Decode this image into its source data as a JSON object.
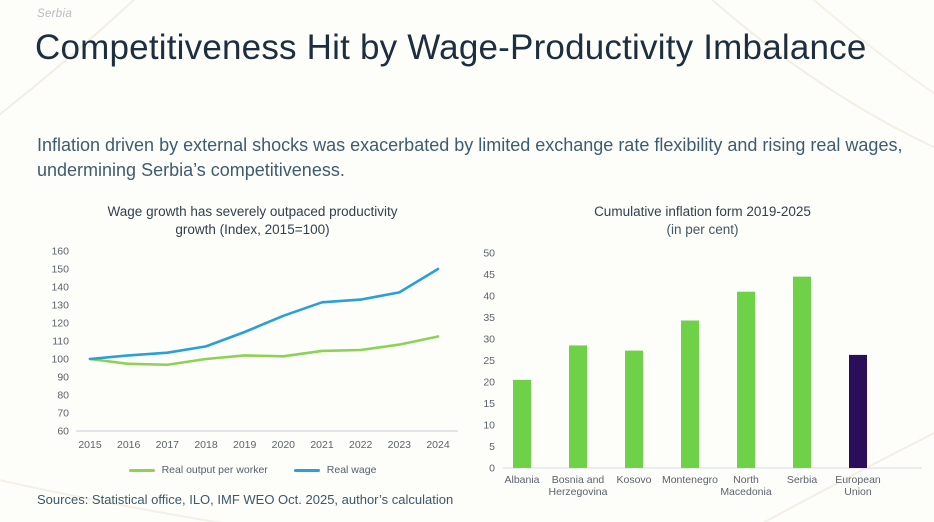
{
  "page": {
    "eyebrow": "Serbia",
    "title": "Competitiveness Hit by Wage-Productivity Imbalance",
    "subtitle": "Inflation driven by external shocks was exacerbated by limited exchange rate flexibility and rising real wages, undermining Serbia’s competitiveness.",
    "sources": "Sources: Statistical office, ILO, IMF WEO Oct. 2025, author’s calculation"
  },
  "colors": {
    "title_text": "#1d2e3e",
    "subtitle_text": "#3e5c70",
    "real_output_line": "#8dd255",
    "real_wage_line": "#2b9fd8",
    "bar_green": "#6fd147",
    "bar_dark_purple": "#2a0e5a",
    "axis_text": "#5b636b"
  },
  "chart_data": [
    {
      "type": "line",
      "title": "Wage growth has severely outpaced productivity growth (Index, 2015=100)",
      "x": [
        2015,
        2016,
        2017,
        2018,
        2019,
        2020,
        2021,
        2022,
        2023,
        2024
      ],
      "ylim": [
        60,
        160
      ],
      "ytick_step": 10,
      "grid": false,
      "legend_position": "bottom",
      "series": [
        {
          "name": "Real output per worker",
          "color": "#8dd255",
          "values": [
            100,
            97.3,
            96.8,
            100,
            102,
            101.5,
            104.5,
            105,
            108,
            112.5
          ]
        },
        {
          "name": "Real wage",
          "color": "#2b9fd8",
          "values": [
            100,
            102,
            103.5,
            107,
            115,
            124,
            131.5,
            133,
            137,
            150
          ]
        }
      ]
    },
    {
      "type": "bar",
      "title": "Cumulative inflation form 2019-2025",
      "subtitle": "(in per cent)",
      "categories": [
        "Albania",
        "Bosnia and Herzegovina",
        "Kosovo",
        "Montenegro",
        "North Macedonia",
        "Serbia",
        "European Union"
      ],
      "category_lines": [
        [
          "Albania"
        ],
        [
          "Bosnia and",
          "Herzegovina"
        ],
        [
          "Kosovo"
        ],
        [
          "Montenegro"
        ],
        [
          "North",
          "Macedonia"
        ],
        [
          "Serbia"
        ],
        [
          "European",
          "Union"
        ]
      ],
      "values": [
        20.5,
        28.5,
        27.3,
        34.3,
        41,
        44.5,
        26.3
      ],
      "bar_colors": [
        "#6fd147",
        "#6fd147",
        "#6fd147",
        "#6fd147",
        "#6fd147",
        "#6fd147",
        "#2a0e5a"
      ],
      "ylim": [
        0,
        50
      ],
      "ytick_step": 5,
      "grid": false
    }
  ]
}
